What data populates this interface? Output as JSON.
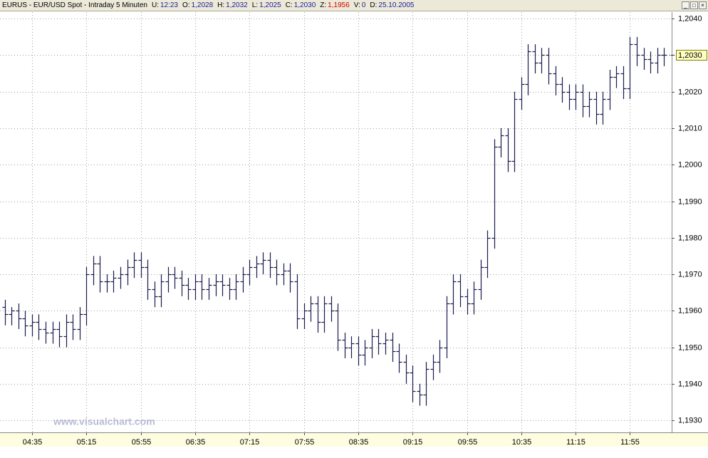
{
  "chart_data": {
    "type": "ohlc",
    "info": {
      "symbol": "EURUS - EUR/USD Spot - Intraday 5 Minuten",
      "fields": [
        {
          "label": "U:",
          "value": "12:23"
        },
        {
          "label": "O:",
          "value": "1,2028"
        },
        {
          "label": "H:",
          "value": "1,2032"
        },
        {
          "label": "L:",
          "value": "1,2025"
        },
        {
          "label": "C:",
          "value": "1,2030"
        },
        {
          "label": "Z:",
          "value": "1,1956",
          "value_color": "#d00000"
        },
        {
          "label": "V:",
          "value": "0"
        },
        {
          "label": "D:",
          "value": "25.10.2005"
        }
      ]
    },
    "watermark": "www.visualchart.com",
    "color": "#1a1a4e",
    "grid": true,
    "categories": [
      null,
      null,
      null,
      null,
      "04:35",
      null,
      null,
      null,
      null,
      null,
      null,
      null,
      "05:15",
      null,
      null,
      null,
      null,
      null,
      null,
      null,
      "05:55",
      null,
      null,
      null,
      null,
      null,
      null,
      null,
      "06:35",
      null,
      null,
      null,
      null,
      null,
      null,
      null,
      "07:15",
      null,
      null,
      null,
      null,
      null,
      null,
      null,
      "07:55",
      null,
      null,
      null,
      null,
      null,
      null,
      null,
      "08:35",
      null,
      null,
      null,
      null,
      null,
      null,
      null,
      "09:15",
      null,
      null,
      null,
      null,
      null,
      null,
      null,
      "09:55",
      null,
      null,
      null,
      null,
      null,
      null,
      null,
      "10:35",
      null,
      null,
      null,
      null,
      null,
      null,
      null,
      "11:15",
      null,
      null,
      null,
      null,
      null,
      null,
      null,
      "11:55",
      null,
      null,
      null,
      null,
      null
    ],
    "open": [
      1.1961,
      1.1959,
      1.196,
      1.1958,
      1.1956,
      1.1957,
      1.1955,
      1.1954,
      1.1955,
      1.1953,
      1.1957,
      1.1955,
      1.1959,
      1.197,
      1.1973,
      1.1968,
      1.1968,
      1.1969,
      1.197,
      1.1972,
      1.1974,
      1.1972,
      1.1966,
      1.1964,
      1.1968,
      1.197,
      1.1969,
      1.1967,
      1.1966,
      1.1968,
      1.1966,
      1.1967,
      1.1968,
      1.1967,
      1.1966,
      1.1968,
      1.197,
      1.1972,
      1.1973,
      1.1974,
      1.1972,
      1.197,
      1.1971,
      1.1968,
      1.1958,
      1.196,
      1.1962,
      1.1957,
      1.1962,
      1.196,
      1.1952,
      1.195,
      1.1951,
      1.1948,
      1.195,
      1.1953,
      1.1951,
      1.1952,
      1.1949,
      1.1946,
      1.1943,
      1.1938,
      1.1937,
      1.1944,
      1.1946,
      1.195,
      1.1962,
      1.1968,
      1.1964,
      1.1962,
      1.1966,
      1.1972,
      1.198,
      1.2005,
      1.2008,
      1.2001,
      1.2018,
      1.2022,
      1.2031,
      1.2028,
      1.203,
      1.2025,
      1.2022,
      1.202,
      1.2018,
      1.202,
      1.2016,
      1.2018,
      1.2014,
      1.2018,
      1.2024,
      1.2025,
      1.2021,
      1.2033,
      1.203,
      1.2029,
      1.2028,
      1.203
    ],
    "high": [
      1.1963,
      1.1961,
      1.1962,
      1.196,
      1.1959,
      1.1959,
      1.1957,
      1.1957,
      1.1957,
      1.1959,
      1.1959,
      1.1961,
      1.1972,
      1.1975,
      1.1975,
      1.197,
      1.1971,
      1.1972,
      1.1974,
      1.1976,
      1.1976,
      1.1974,
      1.1968,
      1.197,
      1.1972,
      1.1972,
      1.1971,
      1.1969,
      1.197,
      1.197,
      1.1969,
      1.197,
      1.197,
      1.1969,
      1.197,
      1.1972,
      1.1974,
      1.1975,
      1.1976,
      1.1976,
      1.1974,
      1.1973,
      1.1973,
      1.197,
      1.1962,
      1.1964,
      1.1964,
      1.1964,
      1.1964,
      1.1962,
      1.1954,
      1.1953,
      1.1953,
      1.1952,
      1.1955,
      1.1955,
      1.1954,
      1.1954,
      1.1951,
      1.1948,
      1.1945,
      1.194,
      1.1946,
      1.1948,
      1.1952,
      1.1964,
      1.197,
      1.197,
      1.1966,
      1.1968,
      1.1974,
      1.1982,
      1.2007,
      1.201,
      1.201,
      1.202,
      1.2024,
      1.2033,
      1.2033,
      1.2032,
      1.2032,
      1.2027,
      1.2024,
      1.2022,
      1.2022,
      1.2022,
      1.202,
      1.202,
      1.202,
      1.2026,
      1.2027,
      1.2027,
      1.2035,
      1.2035,
      1.2032,
      1.2031,
      1.2032,
      1.2032
    ],
    "low": [
      1.1956,
      1.1956,
      1.1955,
      1.1953,
      1.1953,
      1.1952,
      1.1951,
      1.1951,
      1.195,
      1.195,
      1.1952,
      1.1952,
      1.1956,
      1.1967,
      1.1965,
      1.1965,
      1.1965,
      1.1966,
      1.1967,
      1.1969,
      1.1969,
      1.1963,
      1.1961,
      1.1961,
      1.1965,
      1.1966,
      1.1964,
      1.1963,
      1.1963,
      1.1963,
      1.1963,
      1.1964,
      1.1964,
      1.1963,
      1.1963,
      1.1965,
      1.1967,
      1.1969,
      1.197,
      1.1969,
      1.1967,
      1.1967,
      1.1965,
      1.1955,
      1.1955,
      1.1957,
      1.1954,
      1.1954,
      1.1957,
      1.1949,
      1.1947,
      1.1947,
      1.1945,
      1.1945,
      1.1947,
      1.1948,
      1.1948,
      1.1946,
      1.1943,
      1.194,
      1.1935,
      1.1934,
      1.1934,
      1.1941,
      1.1943,
      1.1947,
      1.1959,
      1.1961,
      1.1959,
      1.1959,
      1.1963,
      1.1969,
      1.1977,
      1.2002,
      1.1998,
      1.1998,
      1.2015,
      1.2019,
      1.2025,
      1.2025,
      1.2022,
      1.2019,
      1.2017,
      1.2015,
      1.2015,
      1.2013,
      1.2013,
      1.2011,
      1.2011,
      1.2015,
      1.2021,
      1.2018,
      1.2018,
      1.2027,
      1.2026,
      1.2025,
      1.2025,
      1.2027
    ],
    "close": [
      1.1959,
      1.196,
      1.1958,
      1.1956,
      1.1957,
      1.1955,
      1.1954,
      1.1955,
      1.1953,
      1.1957,
      1.1955,
      1.1959,
      1.197,
      1.1973,
      1.1968,
      1.1968,
      1.1969,
      1.197,
      1.1972,
      1.1974,
      1.1972,
      1.1966,
      1.1964,
      1.1968,
      1.197,
      1.1969,
      1.1967,
      1.1966,
      1.1968,
      1.1966,
      1.1967,
      1.1968,
      1.1967,
      1.1966,
      1.1968,
      1.197,
      1.1972,
      1.1973,
      1.1974,
      1.1972,
      1.197,
      1.1971,
      1.1968,
      1.1958,
      1.196,
      1.1962,
      1.1957,
      1.1962,
      1.196,
      1.1952,
      1.195,
      1.1951,
      1.1948,
      1.195,
      1.1953,
      1.1951,
      1.1952,
      1.1949,
      1.1946,
      1.1943,
      1.1938,
      1.1937,
      1.1944,
      1.1946,
      1.195,
      1.1962,
      1.1968,
      1.1964,
      1.1962,
      1.1966,
      1.1972,
      1.198,
      1.2005,
      1.2008,
      1.2001,
      1.2018,
      1.2022,
      1.2031,
      1.2028,
      1.203,
      1.2025,
      1.2022,
      1.202,
      1.2018,
      1.202,
      1.2016,
      1.2018,
      1.2014,
      1.2018,
      1.2024,
      1.2025,
      1.2021,
      1.2033,
      1.203,
      1.2029,
      1.2028,
      1.203,
      1.203
    ],
    "ylim": [
      1.19267,
      1.20418
    ],
    "yticks": [
      {
        "value": 1.193,
        "label": "1,1930"
      },
      {
        "value": 1.194,
        "label": "1,1940"
      },
      {
        "value": 1.195,
        "label": "1,1950"
      },
      {
        "value": 1.196,
        "label": "1,1960"
      },
      {
        "value": 1.197,
        "label": "1,1970"
      },
      {
        "value": 1.198,
        "label": "1,1980"
      },
      {
        "value": 1.199,
        "label": "1,1990"
      },
      {
        "value": 1.2,
        "label": "1,2000"
      },
      {
        "value": 1.201,
        "label": "1,2010"
      },
      {
        "value": 1.202,
        "label": "1,2020"
      },
      {
        "value": 1.203,
        "label": "1,2030"
      },
      {
        "value": 1.204,
        "label": "1,2040"
      }
    ],
    "last_price": {
      "value": 1.203,
      "label": "1,2030"
    }
  }
}
